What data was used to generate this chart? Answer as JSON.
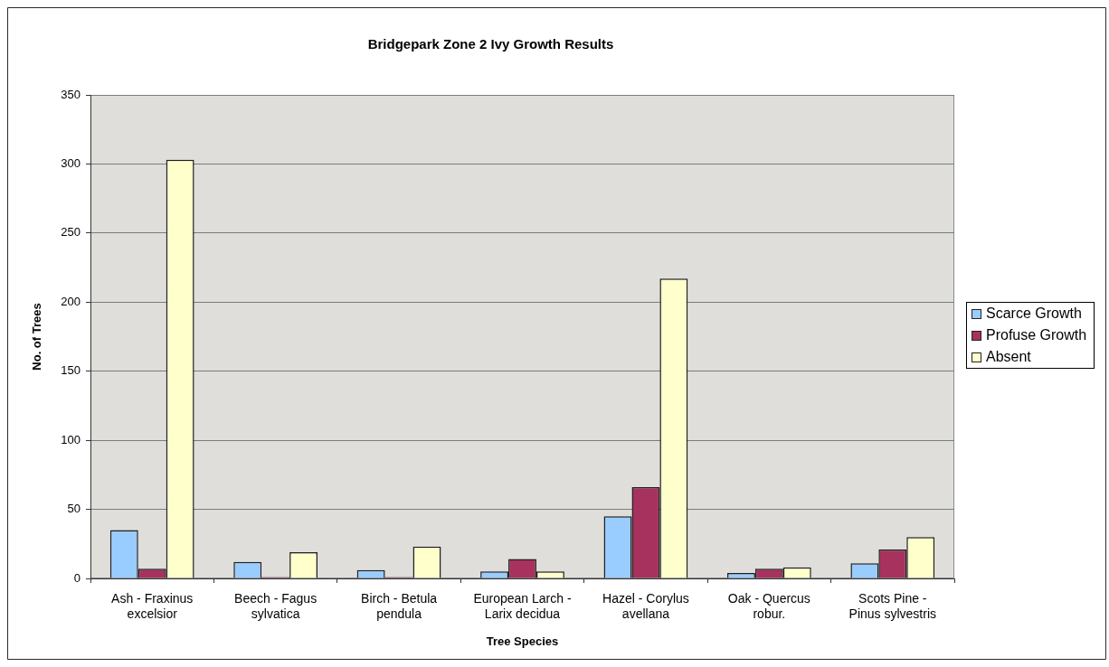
{
  "chart_data": {
    "type": "bar",
    "title": "Bridgepark Zone 2 Ivy Growth Results",
    "xlabel": "Tree Species",
    "ylabel": "No. of Trees",
    "categories": [
      "Ash - Fraxinus excelsior",
      "Beech - Fagus sylvatica",
      "Birch - Betula pendula",
      "European Larch - Larix decidua",
      "Hazel - Corylus avellana",
      "Oak - Quercus robur.",
      "Scots Pine - Pinus sylvestris"
    ],
    "series": [
      {
        "name": "Scarce Growth",
        "color": "#99ccff",
        "values": [
          35,
          12,
          6,
          5,
          45,
          4,
          11
        ]
      },
      {
        "name": "Profuse Growth",
        "color": "#a8325e",
        "values": [
          7,
          1,
          1,
          14,
          66,
          7,
          21
        ]
      },
      {
        "name": "Absent",
        "color": "#ffffcc",
        "values": [
          303,
          19,
          23,
          5,
          217,
          8,
          30
        ]
      }
    ],
    "ylim": [
      0,
      350
    ],
    "yticks": [
      0,
      50,
      100,
      150,
      200,
      250,
      300,
      350
    ],
    "grid": "y",
    "legend": "right"
  }
}
